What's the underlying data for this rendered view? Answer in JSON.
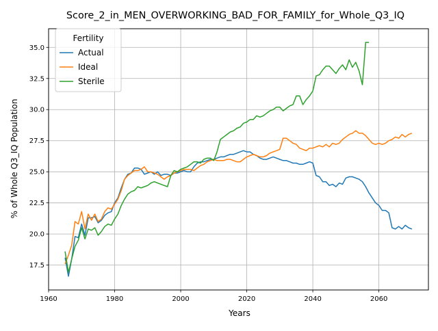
{
  "chart_data": {
    "type": "line",
    "title": "Score_2_in_MEN_OVERWORKING_BAD_FOR_FAMILY_for_Whole_Q3_IQ",
    "xlabel": "Years",
    "ylabel": "% of Whole Q3_IQ Population",
    "xlim": [
      1960,
      2075
    ],
    "ylim": [
      15.5,
      36.5
    ],
    "x_ticks": [
      1960,
      1980,
      2000,
      2020,
      2040,
      2060
    ],
    "y_ticks": [
      17.5,
      20.0,
      22.5,
      25.0,
      27.5,
      30.0,
      32.5,
      35.0
    ],
    "x_tick_labels": [
      "1960",
      "1980",
      "2000",
      "2020",
      "2040",
      "2060"
    ],
    "y_tick_labels": [
      "17.5",
      "20.0",
      "22.5",
      "25.0",
      "27.5",
      "30.0",
      "32.5",
      "35.0"
    ],
    "grid": true,
    "legend": {
      "title": "Fertility",
      "placement": "top-left"
    },
    "series": [
      {
        "name": "Actual",
        "color": "#1f77b4",
        "x": [
          1965,
          1966,
          1967,
          1968,
          1969,
          1970,
          1971,
          1972,
          1973,
          1974,
          1975,
          1976,
          1977,
          1978,
          1979,
          1980,
          1981,
          1982,
          1983,
          1984,
          1985,
          1986,
          1987,
          1988,
          1989,
          1990,
          1991,
          1992,
          1993,
          1994,
          1995,
          1996,
          1997,
          1998,
          1999,
          2000,
          2001,
          2002,
          2003,
          2004,
          2005,
          2006,
          2007,
          2008,
          2009,
          2010,
          2011,
          2012,
          2013,
          2014,
          2015,
          2016,
          2017,
          2018,
          2019,
          2020,
          2021,
          2022,
          2023,
          2024,
          2025,
          2026,
          2027,
          2028,
          2029,
          2030,
          2031,
          2032,
          2033,
          2034,
          2035,
          2036,
          2037,
          2038,
          2039,
          2040,
          2041,
          2042,
          2043,
          2044,
          2045,
          2046,
          2047,
          2048,
          2049,
          2050,
          2051,
          2052,
          2053,
          2054,
          2055,
          2056,
          2057,
          2058,
          2059,
          2060,
          2061,
          2062,
          2063,
          2064,
          2065,
          2066,
          2067,
          2068,
          2069,
          2070
        ],
        "values": [
          18.1,
          16.6,
          18.0,
          19.8,
          19.7,
          20.8,
          19.9,
          21.3,
          21.3,
          21.4,
          20.9,
          21.1,
          21.5,
          21.7,
          21.8,
          22.5,
          22.9,
          23.7,
          24.4,
          24.8,
          24.9,
          25.3,
          25.3,
          25.2,
          24.8,
          24.9,
          25.0,
          24.8,
          25.0,
          24.7,
          24.8,
          24.8,
          24.7,
          24.9,
          24.9,
          25.0,
          25.1,
          25.0,
          25.0,
          25.4,
          25.7,
          25.8,
          25.8,
          25.9,
          26.0,
          26.0,
          26.1,
          26.2,
          26.2,
          26.3,
          26.4,
          26.4,
          26.5,
          26.6,
          26.7,
          26.6,
          26.6,
          26.4,
          26.3,
          26.1,
          26.0,
          26.0,
          26.1,
          26.2,
          26.1,
          26.0,
          25.9,
          25.9,
          25.8,
          25.7,
          25.7,
          25.6,
          25.6,
          25.7,
          25.8,
          25.7,
          24.7,
          24.6,
          24.2,
          24.2,
          23.9,
          24.0,
          23.8,
          24.1,
          24.0,
          24.5,
          24.6,
          24.6,
          24.5,
          24.4,
          24.2,
          23.8,
          23.3,
          22.9,
          22.5,
          22.3,
          21.9,
          21.9,
          21.7,
          20.5,
          20.4,
          20.6,
          20.4,
          20.7,
          20.5,
          20.4
        ]
      },
      {
        "name": "Ideal",
        "color": "#ff7f0e",
        "x": [
          1965,
          1966,
          1967,
          1968,
          1969,
          1970,
          1971,
          1972,
          1973,
          1974,
          1975,
          1976,
          1977,
          1978,
          1979,
          1980,
          1981,
          1982,
          1983,
          1984,
          1985,
          1986,
          1987,
          1988,
          1989,
          1990,
          1991,
          1992,
          1993,
          1994,
          1995,
          1996,
          1997,
          1998,
          1999,
          2000,
          2001,
          2002,
          2003,
          2004,
          2005,
          2006,
          2007,
          2008,
          2009,
          2010,
          2011,
          2012,
          2013,
          2014,
          2015,
          2016,
          2017,
          2018,
          2019,
          2020,
          2021,
          2022,
          2023,
          2024,
          2025,
          2026,
          2027,
          2028,
          2029,
          2030,
          2031,
          2032,
          2033,
          2034,
          2035,
          2036,
          2037,
          2038,
          2039,
          2040,
          2041,
          2042,
          2043,
          2044,
          2045,
          2046,
          2047,
          2048,
          2049,
          2050,
          2051,
          2052,
          2053,
          2054,
          2055,
          2056,
          2057,
          2058,
          2059,
          2060,
          2061,
          2062,
          2063,
          2064,
          2065,
          2066,
          2067,
          2068,
          2069,
          2070
        ],
        "values": [
          17.6,
          18.3,
          19.1,
          21.0,
          20.8,
          21.8,
          20.4,
          21.6,
          21.1,
          21.6,
          21.0,
          21.2,
          21.8,
          22.1,
          22.0,
          22.4,
          22.8,
          23.5,
          24.4,
          24.7,
          24.9,
          25.1,
          25.1,
          25.2,
          25.4,
          25.0,
          25.0,
          24.9,
          24.8,
          24.6,
          24.4,
          24.6,
          24.7,
          24.9,
          25.0,
          25.1,
          25.2,
          25.2,
          25.2,
          25.1,
          25.3,
          25.5,
          25.6,
          25.8,
          25.9,
          26.0,
          25.9,
          25.9,
          25.9,
          26.0,
          26.0,
          25.9,
          25.8,
          25.8,
          26.0,
          26.2,
          26.3,
          26.4,
          26.3,
          26.2,
          26.2,
          26.3,
          26.5,
          26.6,
          26.7,
          26.8,
          27.7,
          27.7,
          27.5,
          27.3,
          27.2,
          26.9,
          26.8,
          26.7,
          26.9,
          26.9,
          27.0,
          27.1,
          27.0,
          27.2,
          27.0,
          27.3,
          27.2,
          27.3,
          27.6,
          27.8,
          28.0,
          28.1,
          28.3,
          28.1,
          28.1,
          27.9,
          27.6,
          27.3,
          27.2,
          27.3,
          27.2,
          27.3,
          27.5,
          27.6,
          27.8,
          27.7,
          28.0,
          27.8,
          28.0,
          28.1
        ]
      },
      {
        "name": "Sterile",
        "color": "#2ca02c",
        "x": [
          1965,
          1966,
          1967,
          1968,
          1969,
          1970,
          1971,
          1972,
          1973,
          1974,
          1975,
          1976,
          1977,
          1978,
          1979,
          1980,
          1981,
          1982,
          1983,
          1984,
          1985,
          1986,
          1987,
          1988,
          1989,
          1990,
          1991,
          1992,
          1993,
          1994,
          1995,
          1996,
          1997,
          1998,
          1999,
          2000,
          2001,
          2002,
          2003,
          2004,
          2005,
          2006,
          2007,
          2008,
          2009,
          2010,
          2011,
          2012,
          2013,
          2014,
          2015,
          2016,
          2017,
          2018,
          2019,
          2020,
          2021,
          2022,
          2023,
          2024,
          2025,
          2026,
          2027,
          2028,
          2029,
          2030,
          2031,
          2032,
          2033,
          2034,
          2035,
          2036,
          2037,
          2038,
          2039,
          2040,
          2041,
          2042,
          2043,
          2044,
          2045,
          2046,
          2047,
          2048,
          2049,
          2050,
          2051,
          2052,
          2053,
          2054,
          2055,
          2056,
          2057
        ],
        "values": [
          18.6,
          16.9,
          18.0,
          19.0,
          19.5,
          20.5,
          19.6,
          20.4,
          20.3,
          20.5,
          19.9,
          20.2,
          20.6,
          20.8,
          20.7,
          21.2,
          21.6,
          22.3,
          22.8,
          23.2,
          23.4,
          23.5,
          23.8,
          23.7,
          23.8,
          23.9,
          24.1,
          24.2,
          24.1,
          24.0,
          23.9,
          23.8,
          24.7,
          25.1,
          25.0,
          25.2,
          25.3,
          25.4,
          25.6,
          25.8,
          25.8,
          25.7,
          26.0,
          26.1,
          26.1,
          25.9,
          26.6,
          27.6,
          27.8,
          28.0,
          28.2,
          28.3,
          28.5,
          28.6,
          28.9,
          29.0,
          29.2,
          29.2,
          29.5,
          29.4,
          29.5,
          29.7,
          29.9,
          30.0,
          30.2,
          30.2,
          29.9,
          30.1,
          30.3,
          30.4,
          31.1,
          31.1,
          30.4,
          30.8,
          31.1,
          31.5,
          32.7,
          32.8,
          33.2,
          33.5,
          33.5,
          33.2,
          32.9,
          33.3,
          33.6,
          33.2,
          34.0,
          33.4,
          33.8,
          33.1,
          32.0,
          35.4,
          35.4
        ]
      }
    ]
  }
}
